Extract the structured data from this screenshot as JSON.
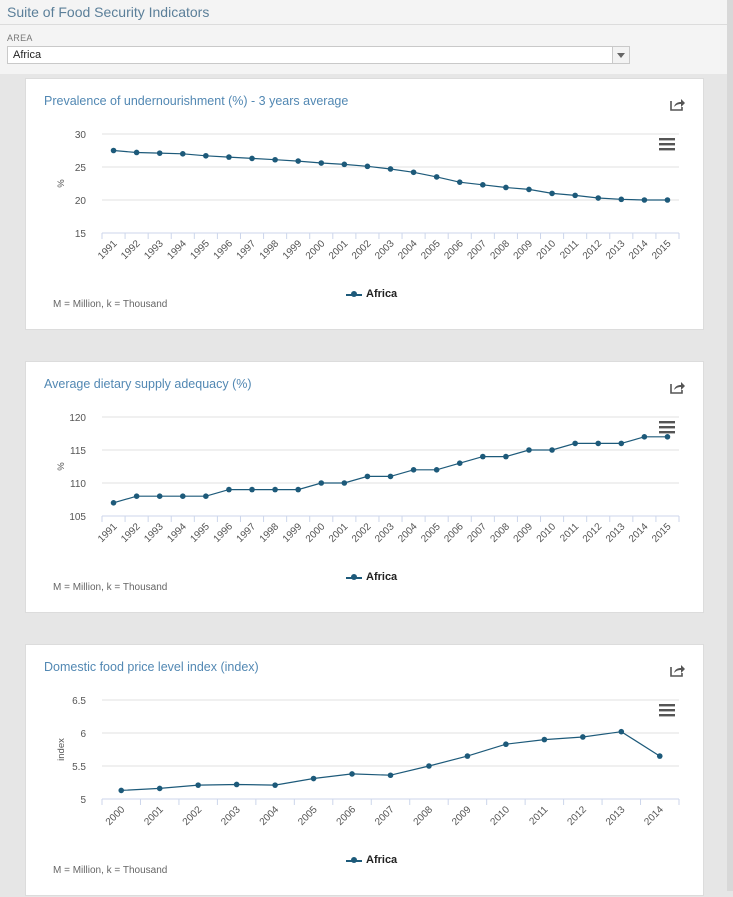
{
  "app": {
    "title": "Suite of Food Security Indicators"
  },
  "filter": {
    "label": "AREA",
    "value": "Africa"
  },
  "colors": {
    "series": "#1d5a7a",
    "title": "#5288b3",
    "grid": "#e2e2e2",
    "axis": "#ccd6eb"
  },
  "icons": {
    "share": "share-icon",
    "menu": "hamburger-menu-icon",
    "dropdown": "chevron-down-icon"
  },
  "chart_data": [
    {
      "type": "line",
      "title": "Prevalence of undernourishment (%) - 3 years average",
      "ylabel": "%",
      "xlabel": "",
      "ylim": [
        15,
        30
      ],
      "yticks": [
        "15",
        "20",
        "25",
        "30"
      ],
      "x": [
        "1991",
        "1992",
        "1993",
        "1994",
        "1995",
        "1996",
        "1997",
        "1998",
        "1999",
        "2000",
        "2001",
        "2002",
        "2003",
        "2004",
        "2005",
        "2006",
        "2007",
        "2008",
        "2009",
        "2010",
        "2011",
        "2012",
        "2013",
        "2014",
        "2015"
      ],
      "series": [
        {
          "name": "Africa",
          "values": [
            27.5,
            27.2,
            27.1,
            27.0,
            26.7,
            26.5,
            26.3,
            26.1,
            25.9,
            25.6,
            25.4,
            25.1,
            24.7,
            24.2,
            23.5,
            22.7,
            22.3,
            21.9,
            21.6,
            21.0,
            20.7,
            20.3,
            20.1,
            20.0,
            20.0
          ]
        }
      ],
      "legend": "bottom-center",
      "grid": true,
      "footnote": "M = Million, k = Thousand"
    },
    {
      "type": "line",
      "title": "Average dietary supply adequacy (%)",
      "ylabel": "%",
      "xlabel": "",
      "ylim": [
        105,
        120
      ],
      "yticks": [
        "105",
        "110",
        "115",
        "120"
      ],
      "x": [
        "1991",
        "1992",
        "1993",
        "1994",
        "1995",
        "1996",
        "1997",
        "1998",
        "1999",
        "2000",
        "2001",
        "2002",
        "2003",
        "2004",
        "2005",
        "2006",
        "2007",
        "2008",
        "2009",
        "2010",
        "2011",
        "2012",
        "2013",
        "2014",
        "2015"
      ],
      "series": [
        {
          "name": "Africa",
          "values": [
            107,
            108,
            108,
            108,
            108,
            109,
            109,
            109,
            109,
            110,
            110,
            111,
            111,
            112,
            112,
            113,
            114,
            114,
            115,
            115,
            116,
            116,
            116,
            117,
            117
          ]
        }
      ],
      "legend": "bottom-center",
      "grid": true,
      "footnote": "M = Million, k = Thousand"
    },
    {
      "type": "line",
      "title": "Domestic food price level index (index)",
      "ylabel": "index",
      "xlabel": "",
      "ylim": [
        5,
        6.5
      ],
      "yticks": [
        "5",
        "5.5",
        "6",
        "6.5"
      ],
      "x": [
        "2000",
        "2001",
        "2002",
        "2003",
        "2004",
        "2005",
        "2006",
        "2007",
        "2008",
        "2009",
        "2010",
        "2011",
        "2012",
        "2013",
        "2014"
      ],
      "series": [
        {
          "name": "Africa",
          "values": [
            5.13,
            5.16,
            5.21,
            5.22,
            5.21,
            5.31,
            5.38,
            5.36,
            5.5,
            5.65,
            5.83,
            5.9,
            5.94,
            6.02,
            5.65
          ]
        }
      ],
      "legend": "bottom-center",
      "grid": true,
      "footnote": "M = Million, k = Thousand"
    }
  ]
}
